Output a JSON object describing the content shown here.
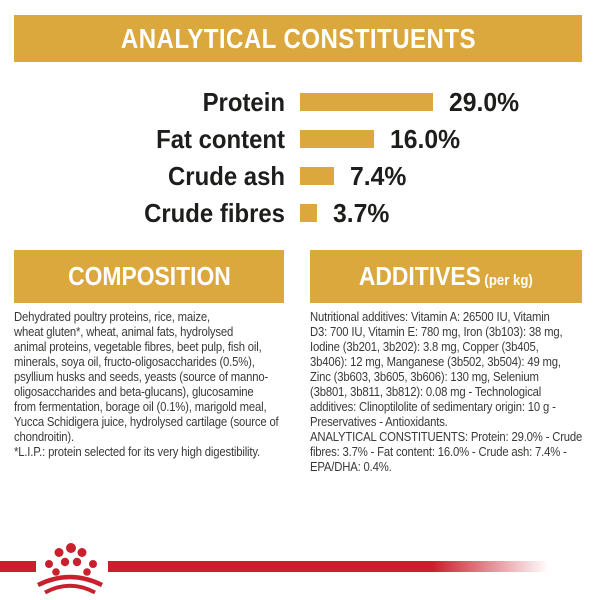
{
  "colors": {
    "gold": "#DBA83E",
    "red": "#C8202C",
    "heading_text": "#FFFFFF",
    "chart_text": "#1D1D1B",
    "body_text": "#3A3A38"
  },
  "header": {
    "title": "ANALYTICAL CONSTITUENTS"
  },
  "chart_data": {
    "type": "bar",
    "orientation": "horizontal",
    "title": "ANALYTICAL CONSTITUENTS",
    "categories": [
      "Protein",
      "Fat content",
      "Crude ash",
      "Crude fibres"
    ],
    "values": [
      29.0,
      16.0,
      7.4,
      3.7
    ],
    "value_labels": [
      "29.0%",
      "16.0%",
      "7.4%",
      "3.7%"
    ],
    "unit": "%",
    "xlim": [
      0,
      29
    ],
    "bar_color": "#DBA83E",
    "grid": false,
    "legend": false
  },
  "composition": {
    "title": "COMPOSITION",
    "body": "Dehydrated poultry proteins, rice, maize,\nwheat gluten*, wheat, animal fats, hydrolysed\nanimal proteins, vegetable fibres, beet pulp, fish oil,\nminerals, soya oil, fructo-oligosaccharides (0.5%),\npsyllium husks and seeds, yeasts (source of manno-\noligosaccharides and beta-glucans), glucosamine\nfrom fermentation, borage oil (0.1%), marigold meal,\nYucca Schidigera juice, hydrolysed cartilage (source of\nchondroitin).",
    "footnote": "*L.I.P.: protein selected for its very high digestibility."
  },
  "additives": {
    "title": "ADDITIVES",
    "title_suffix": "(per kg)",
    "body": "Nutritional additives: Vitamin A: 26500 IU, Vitamin\nD3: 700 IU, Vitamin E: 780 mg, Iron (3b103): 38 mg,\nIodine (3b201, 3b202): 3.8 mg, Copper (3b405,\n3b406): 12 mg, Manganese (3b502, 3b504): 49 mg,\nZinc (3b603, 3b605, 3b606): 130 mg, Selenium\n(3b801, 3b811, 3b812): 0.08 mg - Technological\nadditives: Clinoptilolite of sedimentary origin: 10 g -\nPreservatives - Antioxidants.",
    "analytical": "ANALYTICAL CONSTITUENTS: Protein: 29.0% - Crude\nfibres: 3.7% - Fat content: 16.0% - Crude ash: 7.4% -\nEPA/DHA: 0.4%."
  },
  "footer": {
    "logo": "royal-canin-crown-logo"
  }
}
